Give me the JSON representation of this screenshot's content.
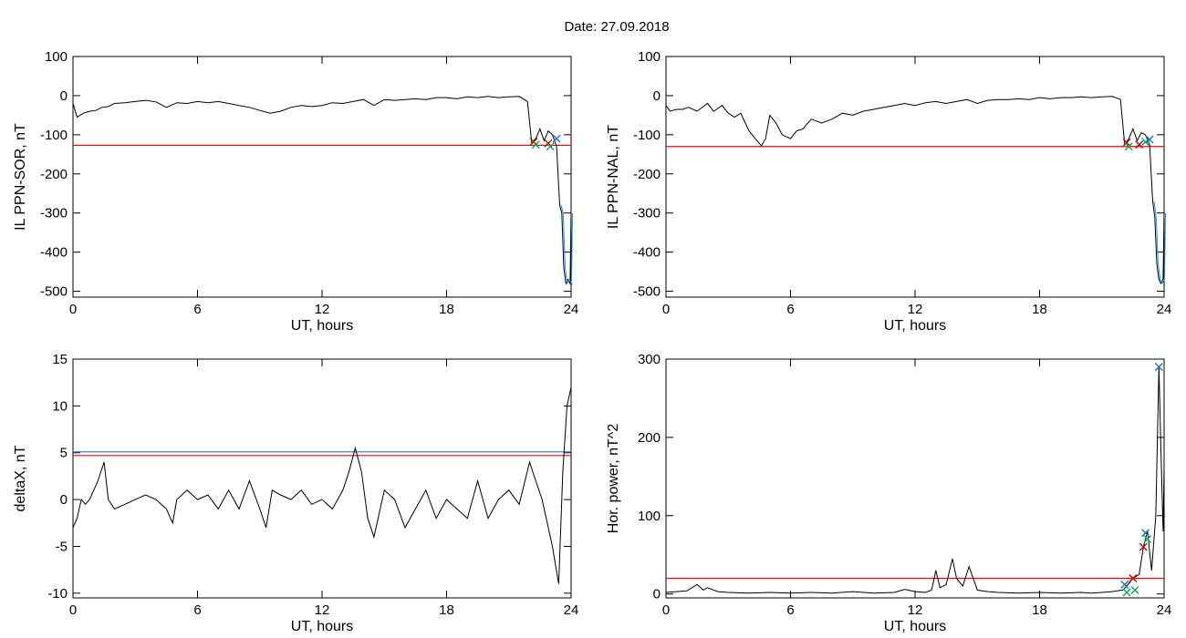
{
  "title": "Date:  27.09.2018",
  "colors": {
    "threshold_red": "#ff0000",
    "threshold_blue": "#1e90ff",
    "series_black": "#000000",
    "marker_red": "#d00000",
    "marker_green": "#00b050",
    "marker_blue": "#1e6fd0"
  },
  "chart_data": [
    {
      "type": "line",
      "ylabel": "IL PPN-SOR, nT",
      "xlabel": "UT, hours",
      "xlim": [
        0,
        24
      ],
      "ylim": [
        -515,
        100
      ],
      "xticks": [
        0,
        6,
        12,
        18,
        24
      ],
      "yticks": [
        100,
        0,
        -100,
        -200,
        -300,
        -400,
        -500
      ],
      "thresholds": [
        {
          "value": -127,
          "color": "red"
        }
      ],
      "series": [
        {
          "x": [
            0,
            0.2,
            0.5,
            0.8,
            1.1,
            1.4,
            1.7,
            2,
            2.5,
            3,
            3.5,
            4,
            4.5,
            5,
            5.5,
            6,
            6.5,
            7,
            7.5,
            8,
            8.5,
            9,
            9.5,
            10,
            10.5,
            11,
            11.5,
            12,
            12.5,
            13,
            13.5,
            14,
            14.5,
            15,
            15.5,
            16,
            16.5,
            17,
            17.5,
            18,
            18.5,
            19,
            19.5,
            20,
            20.5,
            21,
            21.5,
            21.9,
            22.1,
            22.3,
            22.5,
            22.7,
            22.9,
            23.1,
            23.3,
            23.45,
            23.55,
            23.65,
            23.75,
            23.85,
            23.95,
            24
          ],
          "y": [
            -20,
            -55,
            -45,
            -40,
            -38,
            -30,
            -28,
            -20,
            -18,
            -15,
            -12,
            -16,
            -30,
            -18,
            -20,
            -15,
            -18,
            -15,
            -20,
            -25,
            -30,
            -38,
            -45,
            -40,
            -30,
            -25,
            -28,
            -25,
            -18,
            -20,
            -15,
            -10,
            -25,
            -10,
            -12,
            -10,
            -8,
            -10,
            -5,
            -5,
            -8,
            -3,
            -5,
            -2,
            -5,
            -3,
            -2,
            -15,
            -120,
            -110,
            -85,
            -115,
            -90,
            -100,
            -130,
            -280,
            -300,
            -440,
            -480,
            -470,
            -480,
            -300
          ]
        }
      ],
      "markers": [
        {
          "x": 22.2,
          "y": -118,
          "color": "red"
        },
        {
          "x": 22.3,
          "y": -125,
          "color": "green"
        },
        {
          "x": 22.9,
          "y": -122,
          "color": "red"
        },
        {
          "x": 23,
          "y": -130,
          "color": "green"
        },
        {
          "x": 23.3,
          "y": -110,
          "color": "blue"
        }
      ]
    },
    {
      "type": "line",
      "ylabel": "IL PPN-NAL, nT",
      "xlabel": "UT, hours",
      "xlim": [
        0,
        24
      ],
      "ylim": [
        -515,
        100
      ],
      "xticks": [
        0,
        6,
        12,
        18,
        24
      ],
      "yticks": [
        100,
        0,
        -100,
        -200,
        -300,
        -400,
        -500
      ],
      "thresholds": [
        {
          "value": -130,
          "color": "red"
        }
      ],
      "series": [
        {
          "x": [
            0,
            0.2,
            0.5,
            0.8,
            1.1,
            1.5,
            2,
            2.3,
            2.7,
            3,
            3.3,
            3.6,
            4,
            4.3,
            4.6,
            4.8,
            5,
            5.3,
            5.6,
            6,
            6.3,
            6.6,
            7,
            7.5,
            8,
            8.5,
            9,
            9.5,
            10,
            10.5,
            11,
            11.5,
            12,
            12.5,
            13,
            13.5,
            14,
            14.5,
            15,
            15.5,
            16,
            16.5,
            17,
            17.5,
            18,
            18.5,
            19,
            19.5,
            20,
            20.5,
            21,
            21.5,
            21.9,
            22.1,
            22.3,
            22.5,
            22.7,
            22.9,
            23.1,
            23.3,
            23.45,
            23.55,
            23.65,
            23.75,
            23.85,
            23.95,
            24
          ],
          "y": [
            -25,
            -40,
            -35,
            -35,
            -30,
            -40,
            -20,
            -40,
            -25,
            -45,
            -55,
            -45,
            -90,
            -110,
            -128,
            -110,
            -50,
            -70,
            -100,
            -110,
            -90,
            -85,
            -60,
            -70,
            -60,
            -45,
            -50,
            -40,
            -35,
            -30,
            -25,
            -20,
            -25,
            -18,
            -15,
            -20,
            -15,
            -10,
            -20,
            -12,
            -10,
            -10,
            -8,
            -10,
            -5,
            -8,
            -5,
            -5,
            -3,
            -5,
            -3,
            -2,
            -10,
            -125,
            -110,
            -85,
            -115,
            -95,
            -100,
            -125,
            -270,
            -310,
            -430,
            -470,
            -480,
            -470,
            -300
          ]
        }
      ],
      "markers": [
        {
          "x": 22.2,
          "y": -120,
          "color": "red"
        },
        {
          "x": 22.3,
          "y": -130,
          "color": "green"
        },
        {
          "x": 22.8,
          "y": -125,
          "color": "red"
        },
        {
          "x": 23.1,
          "y": -118,
          "color": "green"
        },
        {
          "x": 23.3,
          "y": -112,
          "color": "blue"
        }
      ]
    },
    {
      "type": "line",
      "ylabel": "deltaX, nT",
      "xlabel": "UT, hours",
      "xlim": [
        0,
        24
      ],
      "ylim": [
        -10.5,
        15
      ],
      "xticks": [
        0,
        6,
        12,
        18,
        24
      ],
      "yticks": [
        15,
        10,
        5,
        0,
        -5,
        -10
      ],
      "thresholds": [
        {
          "value": 5.1,
          "color": "blue"
        },
        {
          "value": 4.7,
          "color": "red"
        }
      ],
      "series": [
        {
          "x": [
            0,
            0.2,
            0.4,
            0.6,
            0.8,
            1,
            1.2,
            1.5,
            1.7,
            2,
            2.5,
            3,
            3.5,
            4,
            4.5,
            4.8,
            5,
            5.5,
            6,
            6.5,
            7,
            7.5,
            8,
            8.5,
            9,
            9.3,
            9.6,
            10,
            10.5,
            11,
            11.5,
            12,
            12.5,
            13,
            13.3,
            13.6,
            13.9,
            14.2,
            14.5,
            15,
            15.5,
            16,
            16.5,
            17,
            17.5,
            18,
            18.5,
            19,
            19.5,
            20,
            20.5,
            21,
            21.5,
            22,
            22.3,
            22.6,
            22.9,
            23.1,
            23.25,
            23.4,
            23.6,
            23.8,
            24
          ],
          "y": [
            -3,
            -2,
            0,
            -0.5,
            0,
            1,
            2,
            4,
            0,
            -1,
            -0.5,
            0,
            0.5,
            0,
            -1,
            -2.5,
            0,
            1,
            0,
            0.5,
            -1,
            1,
            -1,
            2,
            -1,
            -3,
            1,
            0.5,
            0,
            1,
            -0.5,
            0,
            -1,
            1,
            3,
            5.5,
            3,
            -2,
            -4,
            1,
            0,
            -3,
            -1,
            1,
            -2,
            0,
            -1,
            -2,
            2,
            -2,
            0,
            1,
            -0.5,
            4,
            2,
            0,
            -3,
            -5,
            -7,
            -9,
            3,
            10,
            12
          ]
        }
      ],
      "markers": []
    },
    {
      "type": "line",
      "ylabel": "Hor. power, nT^2",
      "xlabel": "UT, hours",
      "xlim": [
        0,
        24
      ],
      "ylim": [
        -5,
        300
      ],
      "xticks": [
        0,
        6,
        12,
        18,
        24
      ],
      "yticks": [
        300,
        200,
        100,
        0
      ],
      "thresholds": [
        {
          "value": 20,
          "color": "red"
        }
      ],
      "series": [
        {
          "x": [
            0,
            0.5,
            1,
            1.5,
            1.8,
            2,
            2.5,
            3,
            4,
            5,
            6,
            7,
            8,
            9,
            10,
            11,
            11.5,
            12,
            12.5,
            12.8,
            13,
            13.2,
            13.5,
            13.8,
            14,
            14.3,
            14.6,
            15,
            15.5,
            16,
            17,
            18,
            19,
            20,
            20.5,
            21,
            21.5,
            22,
            22.2,
            22.5,
            22.8,
            23,
            23.2,
            23.4,
            23.6,
            23.75,
            23.85,
            23.95,
            24
          ],
          "y": [
            2,
            3,
            4,
            12,
            5,
            8,
            3,
            2,
            1,
            2,
            1,
            2,
            1,
            3,
            1,
            2,
            6,
            3,
            2,
            5,
            30,
            8,
            12,
            45,
            20,
            10,
            35,
            5,
            3,
            2,
            1,
            2,
            1,
            2,
            1,
            2,
            3,
            5,
            10,
            20,
            25,
            60,
            80,
            30,
            100,
            290,
            180,
            80,
            160
          ]
        }
      ],
      "markers": [
        {
          "x": 22.1,
          "y": 12,
          "color": "blue"
        },
        {
          "x": 22.2,
          "y": 2,
          "color": "green"
        },
        {
          "x": 22.5,
          "y": 20,
          "color": "red"
        },
        {
          "x": 22.6,
          "y": 5,
          "color": "green"
        },
        {
          "x": 23,
          "y": 60,
          "color": "red"
        },
        {
          "x": 23.1,
          "y": 78,
          "color": "blue"
        },
        {
          "x": 23.2,
          "y": 70,
          "color": "green"
        },
        {
          "x": 23.75,
          "y": 290,
          "color": "blue"
        }
      ]
    }
  ]
}
